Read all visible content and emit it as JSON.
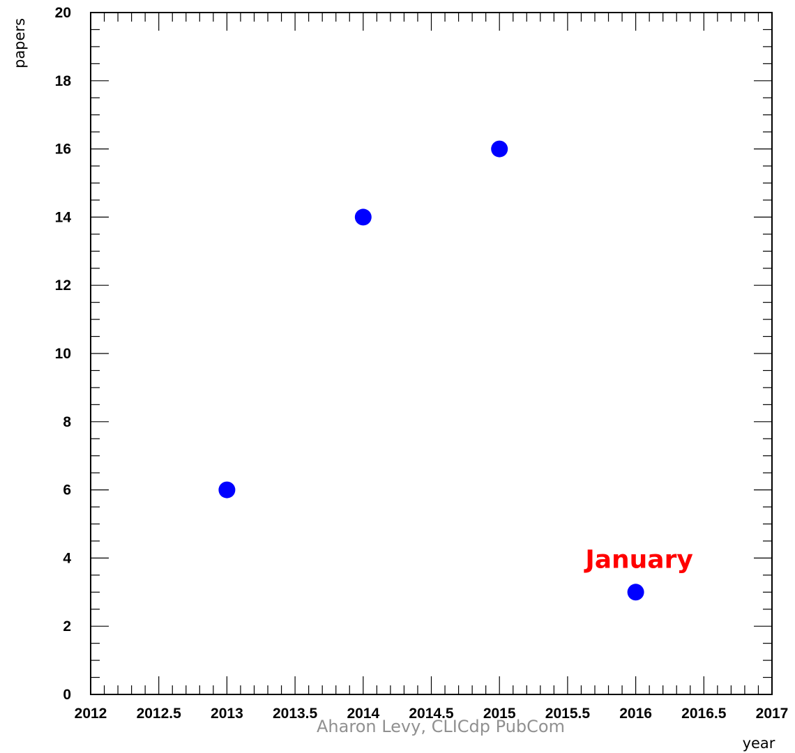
{
  "chart_data": {
    "type": "scatter",
    "x": [
      2013,
      2014,
      2015,
      2016
    ],
    "y": [
      6,
      14,
      16,
      3
    ],
    "xlabel": "year",
    "ylabel": "papers",
    "xlim": [
      2012,
      2017
    ],
    "ylim": [
      0,
      20
    ],
    "x_ticks": [
      "2012",
      "2012.5",
      "2013",
      "2013.5",
      "2014",
      "2014.5",
      "2015",
      "2015.5",
      "2016",
      "2016.5",
      "2017"
    ],
    "y_ticks": [
      "0",
      "2",
      "4",
      "6",
      "8",
      "10",
      "12",
      "14",
      "16",
      "18",
      "20"
    ],
    "grid": false,
    "annotations": [
      {
        "text": "January",
        "x": 2016,
        "y": 3,
        "color": "#ff0000"
      }
    ],
    "marker_color": "#0000ff"
  },
  "footer": "Aharon Levy, CLICdp PubCom"
}
